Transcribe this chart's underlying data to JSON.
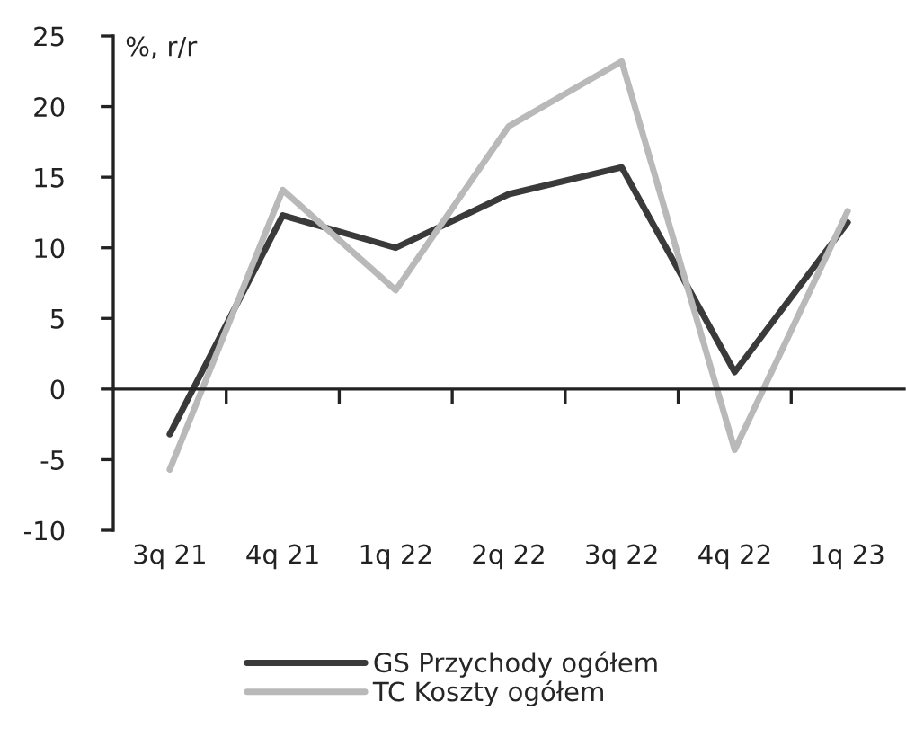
{
  "chart_data": {
    "type": "line",
    "ylabel": "%, r/r",
    "categories": [
      "3q 21",
      "4q 21",
      "1q 22",
      "2q 22",
      "3q 22",
      "4q 22",
      "1q 23"
    ],
    "series": [
      {
        "name": "GS Przychody ogółem",
        "color": "#3a3a3a",
        "values": [
          -3.2,
          12.3,
          10.0,
          13.8,
          15.7,
          1.2,
          11.8
        ]
      },
      {
        "name": "TC Koszty ogółem",
        "color": "#b9b9b9",
        "values": [
          -5.7,
          14.1,
          7.0,
          18.6,
          23.2,
          -4.3,
          12.6
        ]
      }
    ],
    "ylim": [
      -10,
      25
    ],
    "yticks": [
      -10,
      -5,
      0,
      5,
      10,
      15,
      20,
      25
    ],
    "legend": "bottom",
    "marker": "none",
    "line_style": "solid"
  }
}
